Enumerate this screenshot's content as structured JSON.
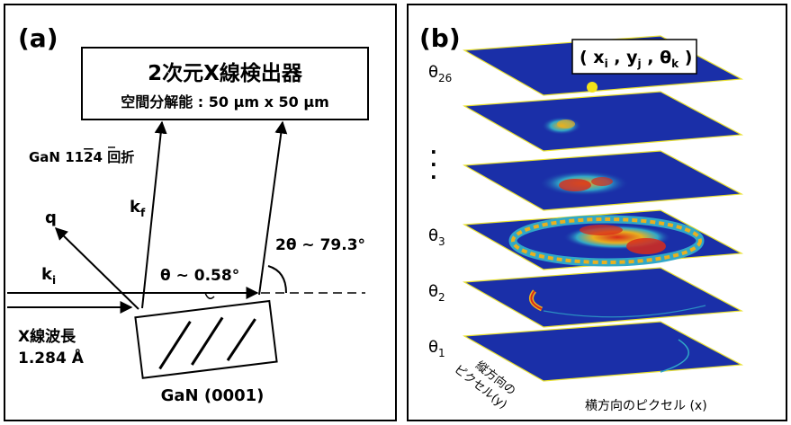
{
  "panel_a": {
    "label": "(a)",
    "detector_title": "2次元X線検出器",
    "detector_resolution": "空間分解能 : 50 μm x 50 μm",
    "reflection_label": "GaN 11",
    "reflection_bar_digit": "2",
    "reflection_tail": "4 回折",
    "q_label": "q",
    "kf_label": "k",
    "kf_sub": "f",
    "ki_label": "k",
    "ki_sub": "i",
    "theta_label": "θ ~ 0.58°",
    "two_theta_label": "2θ ~ 79.3°",
    "wavelength_label": "X線波長",
    "wavelength_value": "1.284 Å",
    "sample_label": "GaN (0001)"
  },
  "panel_b": {
    "label": "(b)",
    "coord_open": "( x",
    "coord_i": "i",
    "coord_sep1": " , y",
    "coord_j": "j",
    "coord_sep2": " , θ",
    "coord_k": "k",
    "coord_close": " )",
    "theta_top": "θ",
    "theta_top_sub": "26",
    "dots": "·",
    "theta_3": "θ",
    "theta_3_sub": "3",
    "theta_2": "θ",
    "theta_2_sub": "2",
    "theta_1": "θ",
    "theta_1_sub": "1",
    "axis_y_line1": "縦方向の",
    "axis_y_line2": "ピクセル(y)",
    "axis_x": "横方向のピクセル (x)",
    "colors": {
      "detector_bg": "#1a2fa8",
      "edge": "#e8e030",
      "hot": "#d92a1a",
      "warm": "#e8b020",
      "mid": "#30a8c8",
      "marker": "#f2e21a"
    }
  }
}
